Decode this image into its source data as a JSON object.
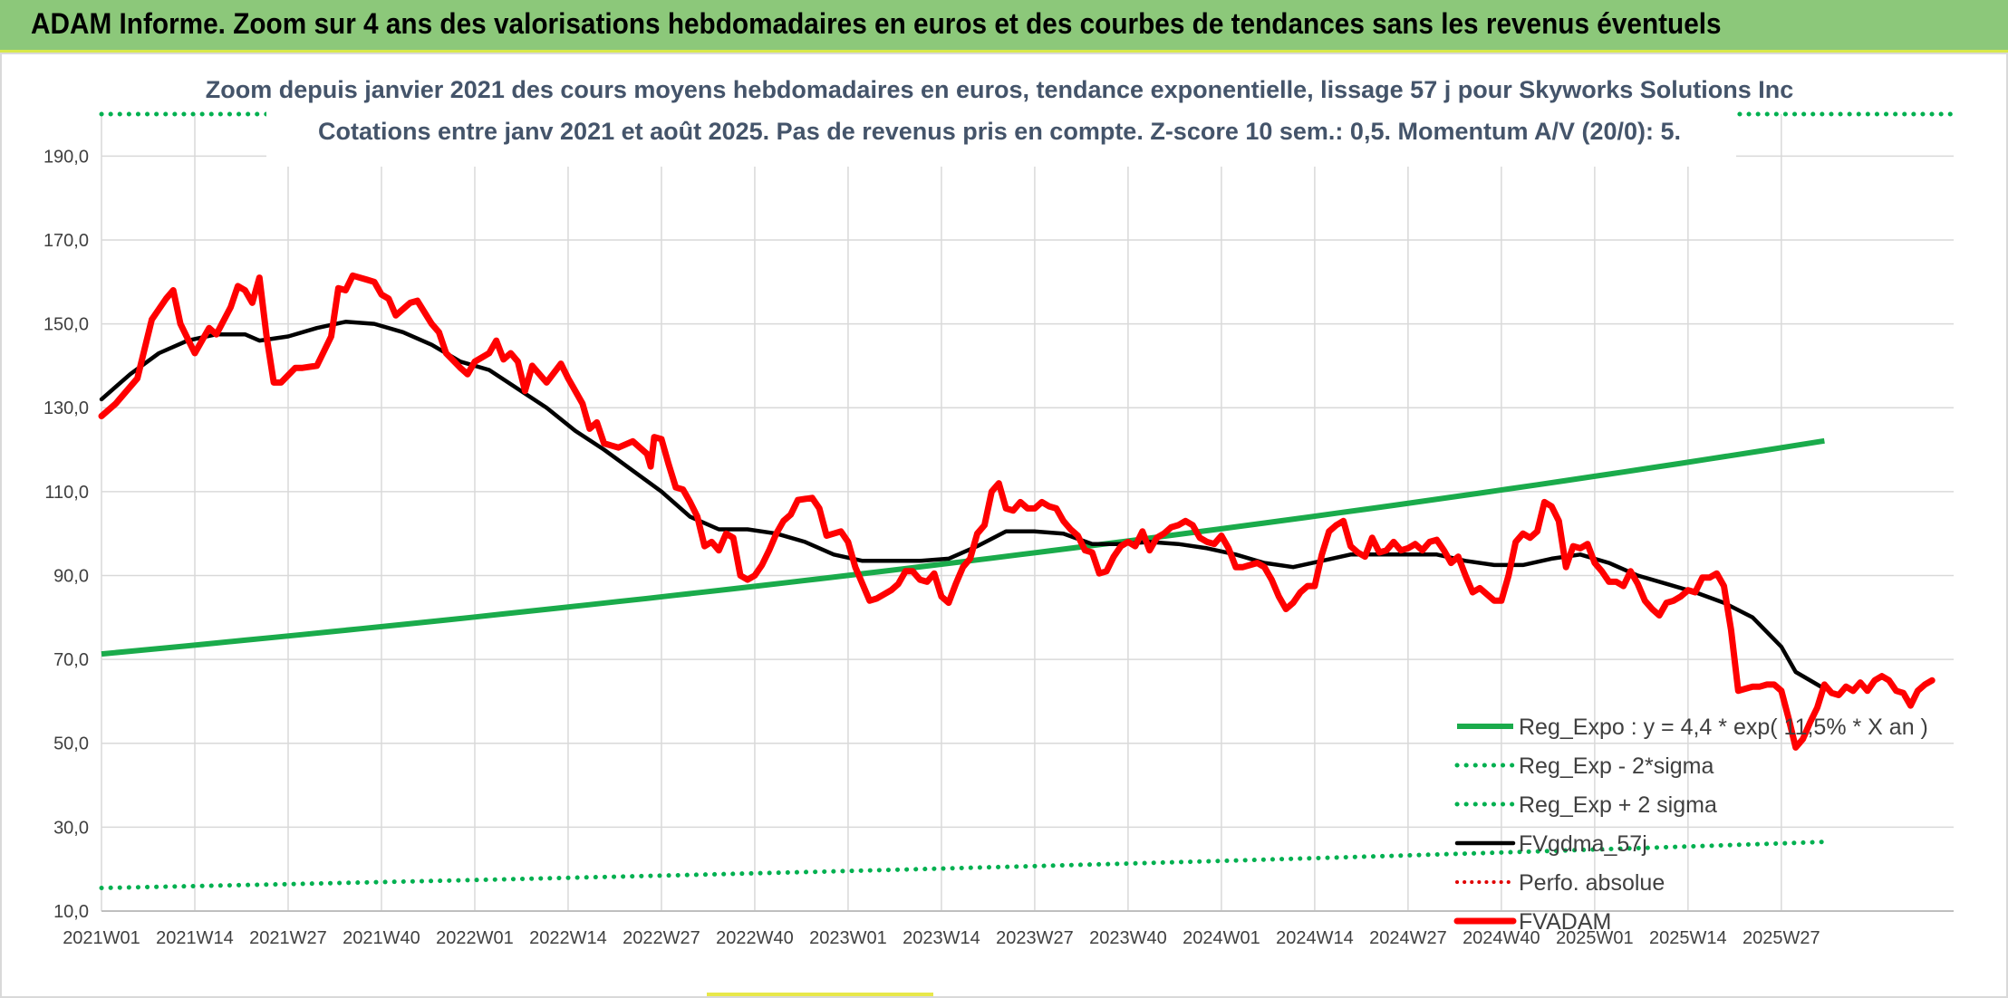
{
  "page": {
    "title": "ADAM Informe. Zoom sur 4 ans des valorisations hebdomadaires en euros et des courbes de tendances sans les revenus éventuels"
  },
  "chart_data": {
    "type": "line",
    "subtitle_lines": [
      "Zoom depuis janvier 2021 des cours moyens hebdomadaires en euros, tendance exponentielle, lissage 57 j pour Skyworks Solutions Inc",
      "Cotations entre janv 2021 et août 2025. Pas de revenus pris en compte. Z-score 10 sem.: 0,5. Momentum A/V (20/0): 5."
    ],
    "x_tick_labels": [
      "2021W01",
      "2021W14",
      "2021W27",
      "2021W40",
      "2022W01",
      "2022W14",
      "2022W27",
      "2022W40",
      "2023W01",
      "2023W14",
      "2023W27",
      "2023W40",
      "2024W01",
      "2024W14",
      "2024W27",
      "2024W40",
      "2025W01",
      "2025W14",
      "2025W27"
    ],
    "y_tick_labels": [
      "10,0",
      "30,0",
      "50,0",
      "70,0",
      "90,0",
      "110,0",
      "130,0",
      "150,0",
      "170,0",
      "190,0"
    ],
    "ylim": [
      10,
      200
    ],
    "grid": true,
    "legend_position": "bottom-right",
    "colors": {
      "reg_expo": "#1aab4b",
      "bands": "#00b050",
      "fvgdma": "#000000",
      "perfo": "#e00000",
      "fvadam": "#ff0000"
    },
    "series": [
      {
        "name": "Reg_Expo : y = 4,4 * exp( 11,5% *  X  an )",
        "style": "solid-thick",
        "key_points": [
          [
            0,
            71.3
          ],
          [
            240,
            122.1
          ]
        ]
      },
      {
        "name": "Reg_Exp - 2*sigma",
        "style": "dotted",
        "key_points": [
          [
            0,
            15.5
          ],
          [
            240,
            26.5
          ]
        ]
      },
      {
        "name": "Reg_Exp + 2 sigma",
        "style": "dotted",
        "key_points": [
          [
            0,
            200.0
          ],
          [
            240,
            200.0
          ]
        ]
      },
      {
        "name": "FVgdma_57j",
        "style": "solid",
        "key_points": [
          [
            0,
            132
          ],
          [
            4,
            138
          ],
          [
            8,
            143
          ],
          [
            12,
            146
          ],
          [
            16,
            147.5
          ],
          [
            20,
            147.5
          ],
          [
            22,
            146
          ],
          [
            26,
            147
          ],
          [
            30,
            149
          ],
          [
            34,
            150.5
          ],
          [
            38,
            150
          ],
          [
            42,
            148
          ],
          [
            46,
            145
          ],
          [
            50,
            141
          ],
          [
            54,
            139
          ],
          [
            58,
            134.5
          ],
          [
            62,
            130
          ],
          [
            66,
            124.5
          ],
          [
            70,
            120
          ],
          [
            74,
            115
          ],
          [
            78,
            110
          ],
          [
            82,
            104
          ],
          [
            86,
            101
          ],
          [
            90,
            101
          ],
          [
            94,
            100
          ],
          [
            98,
            98
          ],
          [
            102,
            95
          ],
          [
            106,
            93.5
          ],
          [
            110,
            93.5
          ],
          [
            114,
            93.5
          ],
          [
            118,
            94
          ],
          [
            122,
            97
          ],
          [
            126,
            100.5
          ],
          [
            130,
            100.5
          ],
          [
            134,
            100
          ],
          [
            138,
            97.5
          ],
          [
            142,
            97.5
          ],
          [
            146,
            98
          ],
          [
            150,
            97.5
          ],
          [
            154,
            96.5
          ],
          [
            158,
            95
          ],
          [
            162,
            93
          ],
          [
            166,
            92
          ],
          [
            170,
            93.5
          ],
          [
            174,
            95
          ],
          [
            178,
            95
          ],
          [
            182,
            95
          ],
          [
            186,
            95
          ],
          [
            190,
            93.5
          ],
          [
            194,
            92.5
          ],
          [
            198,
            92.5
          ],
          [
            202,
            94
          ],
          [
            206,
            95
          ],
          [
            210,
            93
          ],
          [
            214,
            90
          ],
          [
            218,
            88
          ],
          [
            222,
            86
          ],
          [
            226,
            83.5
          ],
          [
            230,
            80
          ],
          [
            234,
            73
          ],
          [
            236,
            67
          ],
          [
            240,
            63
          ]
        ]
      },
      {
        "name": "Perfo. absolue",
        "style": "dotted"
      },
      {
        "name": "FVADAM",
        "style": "solid-thick",
        "key_points": [
          [
            0,
            128
          ],
          [
            2,
            131
          ],
          [
            5,
            137
          ],
          [
            7,
            151
          ],
          [
            9,
            156
          ],
          [
            10,
            158
          ],
          [
            11,
            150
          ],
          [
            13,
            143
          ],
          [
            15,
            149
          ],
          [
            16,
            147.5
          ],
          [
            18,
            154
          ],
          [
            19,
            159
          ],
          [
            20,
            158
          ],
          [
            21,
            155
          ],
          [
            22,
            161
          ],
          [
            23,
            147
          ],
          [
            24,
            136
          ],
          [
            25,
            136
          ],
          [
            27,
            139.5
          ],
          [
            28,
            139.5
          ],
          [
            30,
            140
          ],
          [
            32,
            147
          ],
          [
            33,
            158.5
          ],
          [
            34,
            158
          ],
          [
            35,
            161.5
          ],
          [
            37,
            160.5
          ],
          [
            38,
            160
          ],
          [
            39,
            157
          ],
          [
            40,
            156
          ],
          [
            41,
            152
          ],
          [
            43,
            155
          ],
          [
            44,
            155.5
          ],
          [
            46,
            150
          ],
          [
            47,
            148
          ],
          [
            48,
            143
          ],
          [
            50,
            139.5
          ],
          [
            51,
            138
          ],
          [
            52,
            141
          ],
          [
            54,
            143
          ],
          [
            55,
            146
          ],
          [
            56,
            141.5
          ],
          [
            57,
            143
          ],
          [
            58,
            141
          ],
          [
            59,
            134
          ],
          [
            60,
            140
          ],
          [
            62,
            136
          ],
          [
            64,
            140.5
          ],
          [
            65,
            137
          ],
          [
            67,
            131
          ],
          [
            68,
            125
          ],
          [
            69,
            126.5
          ],
          [
            70,
            121.5
          ],
          [
            72,
            120.5
          ],
          [
            74,
            122
          ],
          [
            76,
            119
          ],
          [
            76.5,
            116
          ],
          [
            77,
            123
          ],
          [
            78,
            122.5
          ],
          [
            79,
            116.5
          ],
          [
            80,
            111
          ],
          [
            81,
            110.5
          ],
          [
            82,
            107.5
          ],
          [
            83,
            104
          ],
          [
            84,
            97
          ],
          [
            85,
            98
          ],
          [
            86,
            96
          ],
          [
            87,
            100
          ],
          [
            88,
            99
          ],
          [
            89,
            90
          ],
          [
            90,
            89
          ],
          [
            91,
            90
          ],
          [
            92,
            92.5
          ],
          [
            93,
            96
          ],
          [
            94,
            100
          ],
          [
            95,
            103
          ],
          [
            96,
            104.5
          ],
          [
            97,
            108
          ],
          [
            99,
            108.5
          ],
          [
            100,
            106
          ],
          [
            101,
            99.5
          ],
          [
            102,
            100
          ],
          [
            103,
            100.5
          ],
          [
            104,
            98
          ],
          [
            105,
            92
          ],
          [
            106,
            88
          ],
          [
            107,
            84
          ],
          [
            108,
            84.5
          ],
          [
            110,
            86.5
          ],
          [
            111,
            88
          ],
          [
            112,
            91
          ],
          [
            113,
            91
          ],
          [
            114,
            89
          ],
          [
            115,
            88.5
          ],
          [
            116,
            90.5
          ],
          [
            117,
            85
          ],
          [
            118,
            83.5
          ],
          [
            119,
            88
          ],
          [
            120,
            92
          ],
          [
            121,
            94
          ],
          [
            122,
            100
          ],
          [
            123,
            102
          ],
          [
            124,
            110
          ],
          [
            125,
            112
          ],
          [
            126,
            106
          ],
          [
            127,
            105.5
          ],
          [
            128,
            107.5
          ],
          [
            129,
            106
          ],
          [
            130,
            106
          ],
          [
            131,
            107.5
          ],
          [
            132,
            106.5
          ],
          [
            133,
            106
          ],
          [
            134,
            103
          ],
          [
            135,
            101
          ],
          [
            136,
            99.5
          ],
          [
            137,
            96
          ],
          [
            138,
            95.5
          ],
          [
            139,
            90.5
          ],
          [
            140,
            91
          ],
          [
            141,
            94.5
          ],
          [
            142,
            97
          ],
          [
            143,
            98
          ],
          [
            144,
            97
          ],
          [
            145,
            100.5
          ],
          [
            146,
            96
          ],
          [
            147,
            99
          ],
          [
            148,
            100
          ],
          [
            149,
            101.5
          ],
          [
            150,
            102
          ],
          [
            151,
            103
          ],
          [
            152,
            102
          ],
          [
            153,
            99
          ],
          [
            154,
            98
          ],
          [
            155,
            97.5
          ],
          [
            156,
            99.5
          ],
          [
            157,
            96.5
          ],
          [
            158,
            92
          ],
          [
            159,
            92
          ],
          [
            160,
            92.5
          ],
          [
            161,
            93
          ],
          [
            162,
            92
          ],
          [
            163,
            89
          ],
          [
            164,
            85
          ],
          [
            165,
            82
          ],
          [
            166,
            83.5
          ],
          [
            167,
            86
          ],
          [
            168,
            87.5
          ],
          [
            169,
            87.5
          ],
          [
            170,
            95
          ],
          [
            171,
            100.5
          ],
          [
            172,
            102
          ],
          [
            173,
            103
          ],
          [
            174,
            97
          ],
          [
            175,
            95.5
          ],
          [
            176,
            94.5
          ],
          [
            177,
            99
          ],
          [
            178,
            95.5
          ],
          [
            179,
            96
          ],
          [
            180,
            98
          ],
          [
            181,
            96
          ],
          [
            182,
            96.5
          ],
          [
            183,
            97.5
          ],
          [
            184,
            96
          ],
          [
            185,
            98
          ],
          [
            186,
            98.5
          ],
          [
            187,
            96
          ],
          [
            188,
            93
          ],
          [
            189,
            94.5
          ],
          [
            190,
            90
          ],
          [
            191,
            86
          ],
          [
            192,
            87
          ],
          [
            193,
            85.5
          ],
          [
            194,
            84
          ],
          [
            195,
            84
          ],
          [
            196,
            90
          ],
          [
            197,
            98
          ],
          [
            198,
            100
          ],
          [
            199,
            99
          ],
          [
            200,
            100.5
          ],
          [
            201,
            107.5
          ],
          [
            202,
            106.5
          ],
          [
            203,
            103
          ],
          [
            204,
            92
          ],
          [
            205,
            97
          ],
          [
            206,
            96.5
          ],
          [
            207,
            97.5
          ],
          [
            208,
            93
          ],
          [
            209,
            91
          ],
          [
            210,
            88.5
          ],
          [
            211,
            88.5
          ],
          [
            212,
            87.5
          ],
          [
            213,
            91
          ],
          [
            214,
            88
          ],
          [
            215,
            84
          ],
          [
            216,
            82
          ],
          [
            217,
            80.5
          ],
          [
            218,
            83.5
          ],
          [
            219,
            84
          ],
          [
            220,
            85
          ],
          [
            221,
            86.5
          ],
          [
            222,
            86
          ],
          [
            223,
            89.5
          ],
          [
            224,
            89.5
          ],
          [
            225,
            90.5
          ],
          [
            226,
            87.5
          ],
          [
            227,
            77
          ],
          [
            228,
            62.5
          ],
          [
            229,
            63
          ],
          [
            230,
            63.5
          ],
          [
            231,
            63.5
          ],
          [
            232,
            64
          ],
          [
            233,
            64
          ],
          [
            234,
            62.5
          ],
          [
            235,
            56
          ],
          [
            236,
            49
          ],
          [
            237,
            51
          ],
          [
            238,
            55
          ],
          [
            239,
            58.5
          ],
          [
            240,
            64
          ],
          [
            241,
            62
          ],
          [
            242,
            61.5
          ],
          [
            243,
            63.5
          ],
          [
            244,
            62.5
          ],
          [
            245,
            64.5
          ],
          [
            246,
            62.5
          ],
          [
            247,
            65
          ],
          [
            248,
            66
          ],
          [
            249,
            65
          ],
          [
            250,
            62.5
          ],
          [
            251,
            62
          ],
          [
            252,
            59
          ],
          [
            253,
            62.5
          ],
          [
            254,
            64
          ],
          [
            255,
            65
          ]
        ]
      }
    ]
  }
}
